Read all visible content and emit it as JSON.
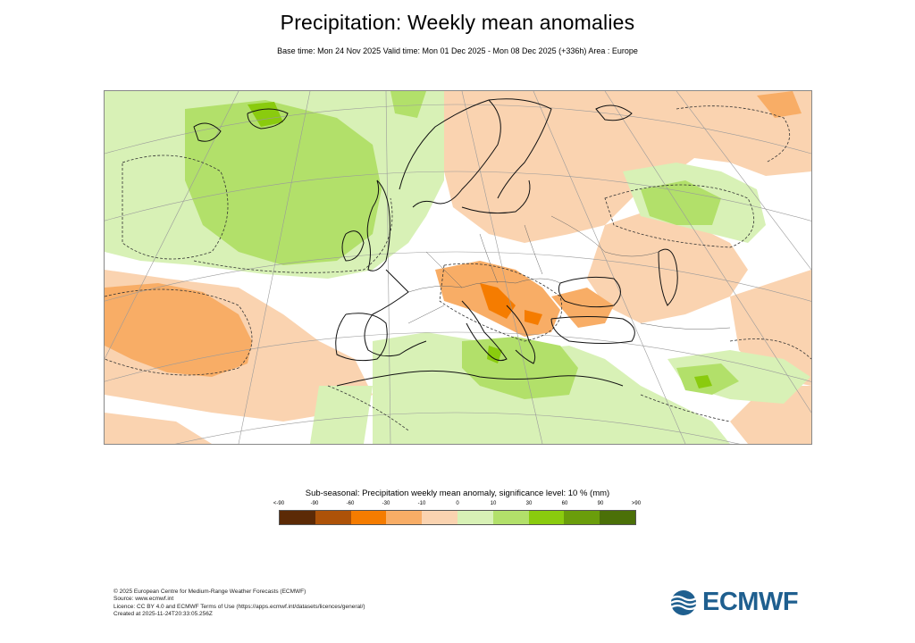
{
  "header": {
    "title": "Precipitation: Weekly mean anomalies",
    "subtitle": "Base time: Mon 24 Nov 2025 Valid time: Mon 01 Dec 2025 - Mon 08 Dec 2025 (+336h) Area : Europe"
  },
  "map": {
    "area": "Europe",
    "layers": [
      "precipitation-anomaly-fill",
      "coastlines",
      "country-borders",
      "graticule",
      "significance-contour"
    ]
  },
  "legend": {
    "title": "Sub-seasonal: Precipitation weekly mean anomaly, significance level: 10 % (mm)",
    "ticks": [
      "<-90",
      "-90",
      "-60",
      "-30",
      "-10",
      "0",
      "10",
      "30",
      "60",
      "90",
      ">90"
    ],
    "colors": [
      "#5c2a06",
      "#ad5208",
      "#f57c00",
      "#f8ad66",
      "#fad3b0",
      "#ffffff",
      "#d8f1b6",
      "#b2e06a",
      "#8acb0e",
      "#6a9d0b",
      "#4b7008"
    ]
  },
  "footer": {
    "lines": [
      "© 2025 European Centre for Medium-Range Weather Forecasts (ECMWF)",
      "Source: www.ecmwf.int",
      "Licence: CC BY 4.0 and ECMWF Terms of Use (https://apps.ecmwf.int/datasets/licences/general/)",
      "Created at 2025-11-24T20:33:05.256Z"
    ]
  },
  "logo": {
    "text": "ECMWF",
    "color": "#1f5f8f",
    "icon": "ecmwf-logo-icon"
  }
}
